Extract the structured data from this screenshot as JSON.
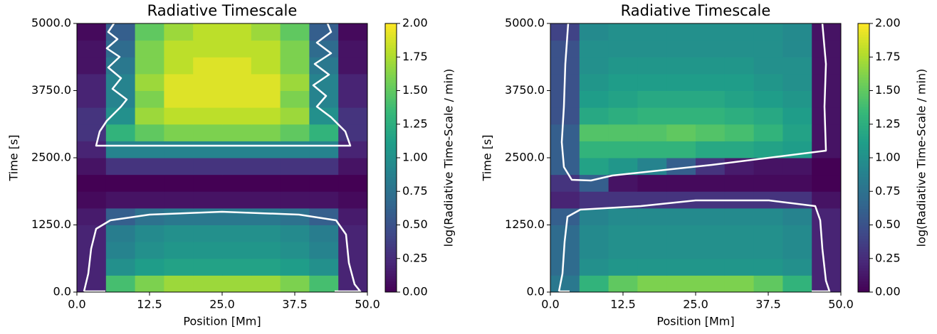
{
  "chart_data": [
    {
      "type": "heatmap",
      "title": "Radiative Timescale",
      "x_label": "Position [Mm]",
      "y_label": "Time [s]",
      "colorbar_label": "log(Radiative Time-Scale / min)",
      "xlim": [
        0,
        50
      ],
      "ylim": [
        0,
        5000
      ],
      "clim": [
        0,
        2
      ],
      "xticks": [
        {
          "value": 0,
          "label": "0.0"
        },
        {
          "value": 12.5,
          "label": "12.5"
        },
        {
          "value": 25,
          "label": "25.0"
        },
        {
          "value": 37.5,
          "label": "37.5"
        },
        {
          "value": 50,
          "label": "50.0"
        }
      ],
      "yticks": [
        {
          "value": 0,
          "label": "0.0"
        },
        {
          "value": 1250,
          "label": "1250.0"
        },
        {
          "value": 2500,
          "label": "2500.0"
        },
        {
          "value": 3750,
          "label": "3750.0"
        },
        {
          "value": 5000,
          "label": "5000.0"
        }
      ],
      "cticks": [
        {
          "value": 0,
          "label": "0.00"
        },
        {
          "value": 0.25,
          "label": "0.25"
        },
        {
          "value": 0.5,
          "label": "0.50"
        },
        {
          "value": 0.75,
          "label": "0.75"
        },
        {
          "value": 1,
          "label": "1.00"
        },
        {
          "value": 1.25,
          "label": "1.25"
        },
        {
          "value": 1.5,
          "label": "1.50"
        },
        {
          "value": 1.75,
          "label": "1.75"
        },
        {
          "value": 2,
          "label": "2.00"
        }
      ],
      "x": [
        2.5,
        7.5,
        12.5,
        17.5,
        22.5,
        27.5,
        32.5,
        37.5,
        42.5,
        47.5
      ],
      "y": [
        156.25,
        468.75,
        781.25,
        1093.75,
        1406.25,
        1718.75,
        2031.25,
        2343.75,
        2656.25,
        2968.75,
        3281.25,
        3593.75,
        3906.25,
        4218.75,
        4531.25,
        4843.75
      ],
      "z": [
        [
          0.2,
          1.4,
          1.6,
          1.7,
          1.7,
          1.7,
          1.7,
          1.6,
          1.4,
          0.2
        ],
        [
          0.2,
          1.0,
          1.1,
          1.15,
          1.15,
          1.15,
          1.15,
          1.1,
          1.0,
          0.2
        ],
        [
          0.2,
          0.9,
          1.0,
          1.05,
          1.05,
          1.05,
          1.05,
          1.0,
          0.9,
          0.2
        ],
        [
          0.2,
          0.85,
          0.95,
          1.0,
          1.0,
          1.0,
          1.0,
          0.95,
          0.85,
          0.2
        ],
        [
          0.15,
          0.6,
          0.75,
          0.8,
          0.8,
          0.8,
          0.8,
          0.75,
          0.6,
          0.15
        ],
        [
          0.05,
          0.1,
          0.1,
          0.1,
          0.1,
          0.1,
          0.1,
          0.1,
          0.1,
          0.05
        ],
        [
          0.0,
          0.0,
          0.0,
          0.0,
          0.0,
          0.0,
          0.0,
          0.0,
          0.0,
          0.0
        ],
        [
          0.1,
          0.3,
          0.3,
          0.3,
          0.3,
          0.3,
          0.3,
          0.3,
          0.3,
          0.1
        ],
        [
          0.2,
          0.9,
          0.9,
          0.9,
          0.9,
          0.9,
          0.9,
          0.9,
          0.9,
          0.2
        ],
        [
          0.3,
          1.3,
          1.5,
          1.6,
          1.6,
          1.6,
          1.6,
          1.5,
          1.3,
          0.3
        ],
        [
          0.3,
          1.0,
          1.7,
          1.8,
          1.8,
          1.8,
          1.8,
          1.7,
          1.0,
          0.3
        ],
        [
          0.2,
          0.9,
          1.6,
          1.9,
          1.9,
          1.9,
          1.9,
          1.6,
          0.9,
          0.2
        ],
        [
          0.2,
          0.9,
          1.7,
          1.9,
          1.9,
          1.9,
          1.9,
          1.7,
          0.9,
          0.2
        ],
        [
          0.1,
          0.8,
          1.6,
          1.8,
          1.9,
          1.9,
          1.8,
          1.6,
          0.8,
          0.1
        ],
        [
          0.1,
          0.7,
          1.6,
          1.8,
          1.8,
          1.8,
          1.8,
          1.6,
          0.7,
          0.1
        ],
        [
          0.05,
          0.6,
          1.5,
          1.7,
          1.8,
          1.8,
          1.7,
          1.5,
          0.6,
          0.05
        ]
      ]
    },
    {
      "type": "heatmap",
      "title": "Radiative Timescale",
      "x_label": "Position [Mm]",
      "y_label": "Time [s]",
      "colorbar_label": "log(Radiative Time-Scale / min)",
      "xlim": [
        0,
        50
      ],
      "ylim": [
        0,
        5000
      ],
      "clim": [
        0,
        2
      ],
      "xticks": [
        {
          "value": 0,
          "label": "0.0"
        },
        {
          "value": 12.5,
          "label": "12.5"
        },
        {
          "value": 25,
          "label": "25.0"
        },
        {
          "value": 37.5,
          "label": "37.5"
        },
        {
          "value": 50,
          "label": "50.0"
        }
      ],
      "yticks": [
        {
          "value": 0,
          "label": "0.0"
        },
        {
          "value": 1250,
          "label": "1250.0"
        },
        {
          "value": 2500,
          "label": "2500.0"
        },
        {
          "value": 3750,
          "label": "3750.0"
        },
        {
          "value": 5000,
          "label": "5000.0"
        }
      ],
      "cticks": [
        {
          "value": 0,
          "label": "0.00"
        },
        {
          "value": 0.25,
          "label": "0.25"
        },
        {
          "value": 0.5,
          "label": "0.50"
        },
        {
          "value": 0.75,
          "label": "0.75"
        },
        {
          "value": 1,
          "label": "1.00"
        },
        {
          "value": 1.25,
          "label": "1.25"
        },
        {
          "value": 1.5,
          "label": "1.50"
        },
        {
          "value": 1.75,
          "label": "1.75"
        },
        {
          "value": 2,
          "label": "2.00"
        }
      ],
      "x": [
        2.5,
        7.5,
        12.5,
        17.5,
        22.5,
        27.5,
        32.5,
        37.5,
        42.5,
        47.5
      ],
      "y": [
        156.25,
        468.75,
        781.25,
        1093.75,
        1406.25,
        1718.75,
        2031.25,
        2343.75,
        2656.25,
        2968.75,
        3281.25,
        3593.75,
        3906.25,
        4218.75,
        4531.25,
        4843.75
      ],
      "z": [
        [
          0.8,
          1.3,
          1.5,
          1.6,
          1.6,
          1.6,
          1.6,
          1.5,
          1.3,
          0.2
        ],
        [
          0.7,
          1.0,
          1.05,
          1.05,
          1.05,
          1.05,
          1.05,
          1.05,
          1.0,
          0.2
        ],
        [
          0.7,
          0.95,
          1.0,
          1.0,
          1.0,
          1.0,
          1.0,
          1.0,
          0.95,
          0.2
        ],
        [
          0.7,
          0.95,
          1.0,
          1.0,
          1.0,
          1.0,
          1.0,
          1.0,
          0.95,
          0.2
        ],
        [
          0.6,
          0.9,
          0.95,
          0.95,
          0.95,
          0.95,
          0.95,
          0.95,
          0.9,
          0.2
        ],
        [
          0.2,
          0.3,
          0.3,
          0.3,
          0.3,
          0.3,
          0.3,
          0.3,
          0.3,
          0.1
        ],
        [
          0.3,
          0.6,
          0.1,
          0.05,
          0.05,
          0.05,
          0.05,
          0.05,
          0.05,
          0.0
        ],
        [
          0.6,
          1.15,
          1.05,
          0.9,
          0.6,
          0.3,
          0.15,
          0.1,
          0.1,
          0.0
        ],
        [
          0.6,
          1.3,
          1.3,
          1.3,
          1.3,
          1.2,
          1.2,
          1.15,
          1.1,
          0.1
        ],
        [
          0.6,
          1.45,
          1.45,
          1.45,
          1.5,
          1.45,
          1.4,
          1.3,
          1.15,
          0.1
        ],
        [
          0.5,
          1.2,
          1.25,
          1.3,
          1.3,
          1.3,
          1.25,
          1.2,
          1.1,
          0.1
        ],
        [
          0.5,
          1.1,
          1.15,
          1.2,
          1.2,
          1.2,
          1.15,
          1.1,
          1.05,
          0.1
        ],
        [
          0.5,
          1.05,
          1.1,
          1.1,
          1.1,
          1.1,
          1.1,
          1.05,
          1.0,
          0.1
        ],
        [
          0.5,
          1.0,
          1.05,
          1.05,
          1.05,
          1.05,
          1.05,
          1.0,
          1.0,
          0.1
        ],
        [
          0.5,
          1.0,
          1.0,
          1.0,
          1.0,
          1.0,
          1.0,
          1.0,
          0.95,
          0.1
        ],
        [
          0.4,
          0.95,
          1.0,
          1.0,
          1.0,
          1.0,
          1.0,
          1.0,
          0.95,
          0.1
        ]
      ]
    }
  ]
}
